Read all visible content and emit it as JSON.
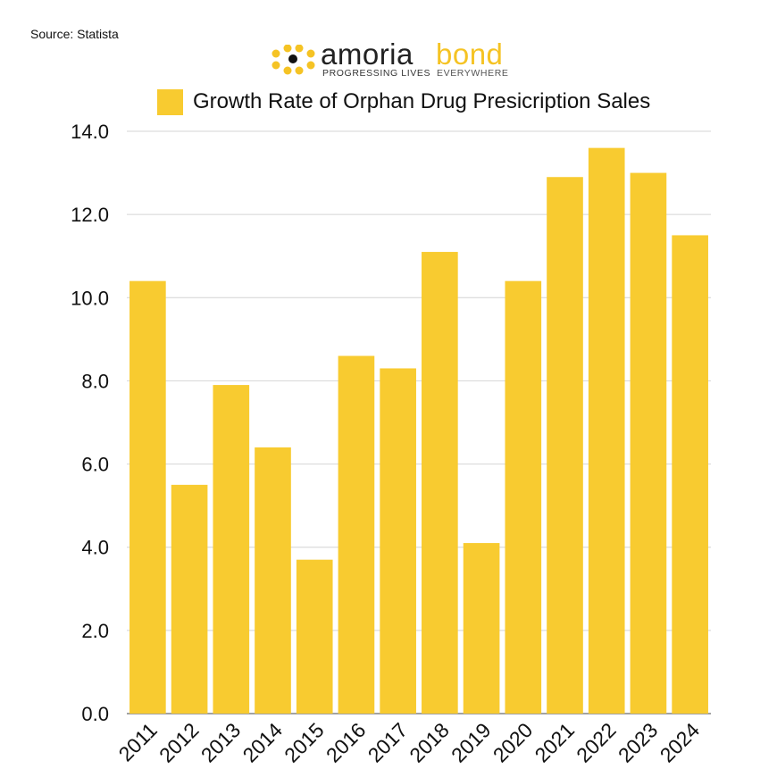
{
  "source": "Source: Statista",
  "logo": {
    "word1": "amoria",
    "word2": "bond",
    "tagline1": "PROGRESSING LIVES",
    "tagline2": "EVERYWHERE",
    "dot_color": "#f5c324",
    "center_dot_color": "#111111"
  },
  "chart_data": {
    "type": "bar",
    "title": "",
    "xlabel": "",
    "ylabel": "",
    "categories": [
      "2011",
      "2012",
      "2013",
      "2014",
      "2015",
      "2016",
      "2017",
      "2018",
      "2019",
      "2020",
      "2021",
      "2022",
      "2023",
      "2024"
    ],
    "series": [
      {
        "name": "Growth Rate of Orphan Drug Presicription Sales",
        "values": [
          10.4,
          5.5,
          7.9,
          6.4,
          3.7,
          8.6,
          8.3,
          11.1,
          4.1,
          10.4,
          12.9,
          13.6,
          13.0,
          11.5
        ],
        "color": "#f8cb30"
      }
    ],
    "ylim": [
      0,
      14
    ],
    "yticks": [
      "0.0",
      "2.0",
      "4.0",
      "6.0",
      "8.0",
      "10.0",
      "12.0",
      "14.0"
    ],
    "grid": true,
    "legend_position": "top"
  }
}
